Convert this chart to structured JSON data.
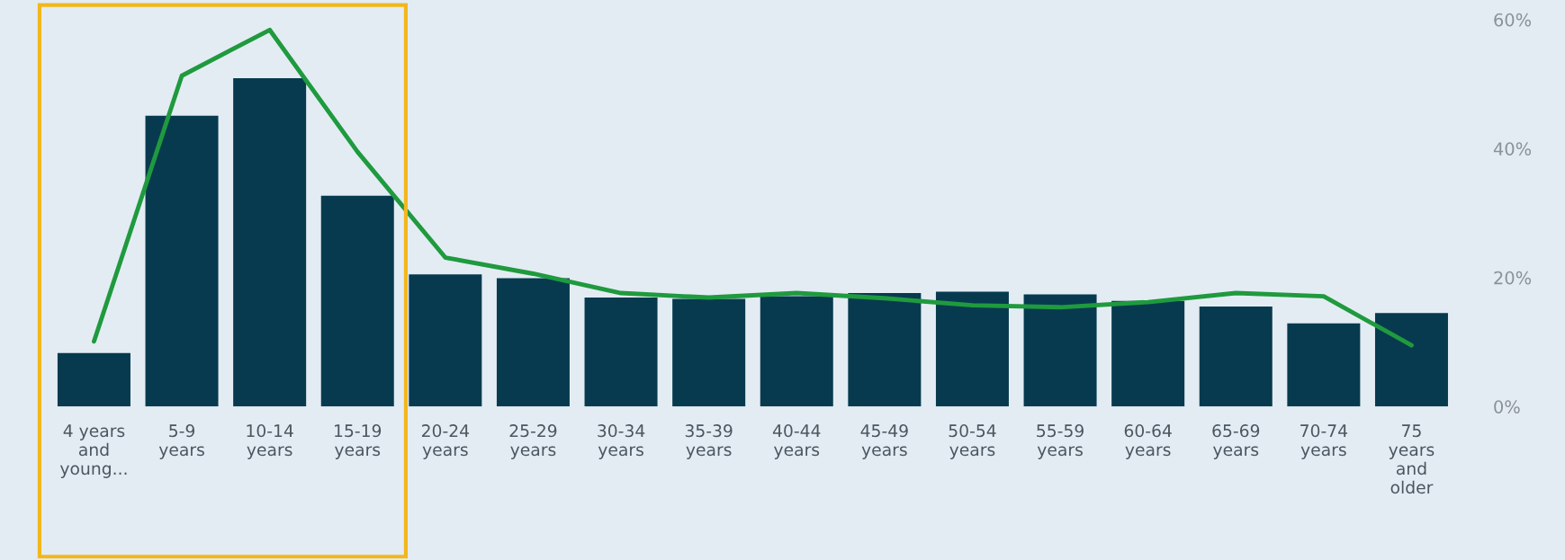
{
  "chart_data": {
    "type": "bar",
    "categories": [
      "4 years\nand\nyoung...",
      "5-9\nyears",
      "10-14\nyears",
      "15-19\nyears",
      "20-24\nyears",
      "25-29\nyears",
      "30-34\nyears",
      "35-39\nyears",
      "40-44\nyears",
      "45-49\nyears",
      "50-54\nyears",
      "55-59\nyears",
      "60-64\nyears",
      "65-69\nyears",
      "70-74\nyears",
      "75\nyears\nand\nolder"
    ],
    "series": [
      {
        "color": "#073a4f",
        "values": [
          8.3,
          45.1,
          50.9,
          32.7,
          20.5,
          19.9,
          16.9,
          16.7,
          17.1,
          17.6,
          17.8,
          17.4,
          16.4,
          15.5,
          12.9,
          14.5
        ]
      },
      {
        "type": "line",
        "color": "#1f9a3e",
        "values": [
          10.1,
          51.3,
          58.4,
          39.5,
          23.1,
          20.6,
          17.6,
          16.9,
          17.6,
          16.8,
          15.7,
          15.4,
          16.2,
          17.6,
          17.1,
          9.5
        ]
      }
    ],
    "ylim": [
      0,
      60
    ],
    "yticks": [
      {
        "value": 0,
        "label": "0%"
      },
      {
        "value": 20,
        "label": "20%"
      },
      {
        "value": 40,
        "label": "40%"
      },
      {
        "value": 60,
        "label": "60%"
      }
    ],
    "grid": false,
    "legend": false,
    "marker": "none",
    "line_style": "solid"
  }
}
